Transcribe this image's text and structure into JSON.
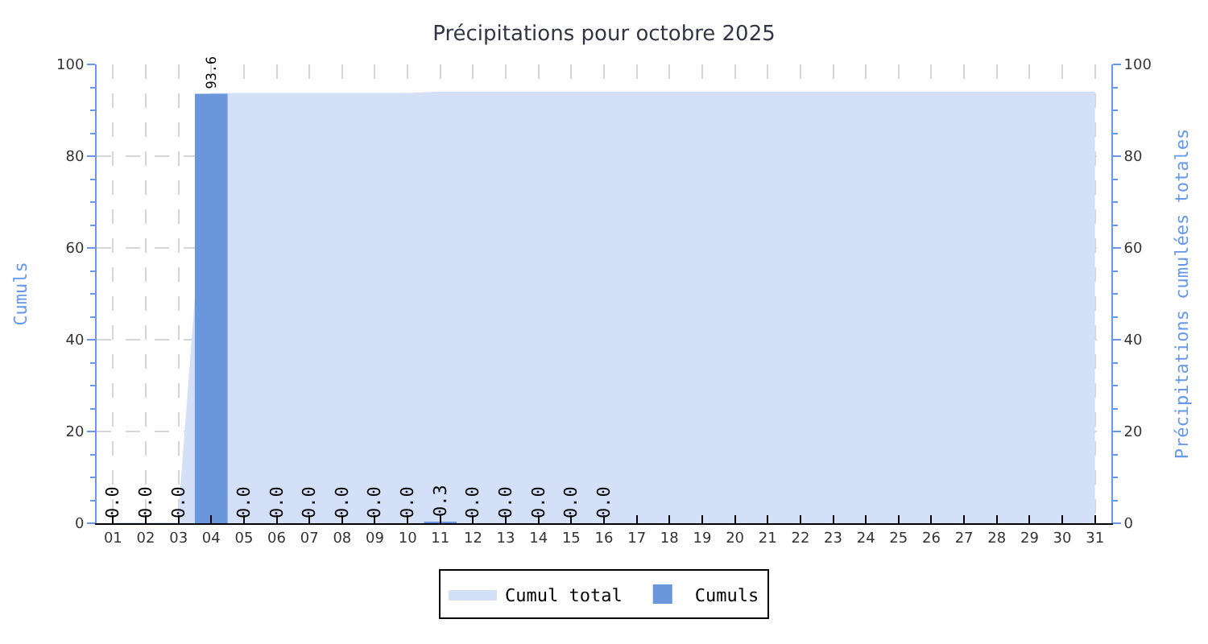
{
  "chart_data": {
    "type": "bar",
    "title": "Précipitations pour octobre 2025",
    "ylabel": "Cumuls",
    "y2label": "Précipitations cumulées totales",
    "categories": [
      "01",
      "02",
      "03",
      "04",
      "05",
      "06",
      "07",
      "08",
      "09",
      "10",
      "11",
      "12",
      "13",
      "14",
      "15",
      "16",
      "17",
      "18",
      "19",
      "20",
      "21",
      "22",
      "23",
      "24",
      "25",
      "26",
      "27",
      "28",
      "29",
      "30",
      "31"
    ],
    "series": [
      {
        "name": "Cumul total",
        "type": "area",
        "axis": "y2",
        "color": "#d3e0f8",
        "values": [
          0,
          0,
          0,
          93.6,
          93.6,
          93.6,
          93.6,
          93.6,
          93.6,
          93.6,
          93.9,
          93.9,
          93.9,
          93.9,
          93.9,
          93.9,
          93.9,
          93.9,
          93.9,
          93.9,
          93.9,
          93.9,
          93.9,
          93.9,
          93.9,
          93.9,
          93.9,
          93.9,
          93.9,
          93.9,
          93.9
        ]
      },
      {
        "name": "Cumuls",
        "color": "#6a96dc",
        "values": [
          0.0,
          0.0,
          0.0,
          93.6,
          0.0,
          0.0,
          0.0,
          0.0,
          0.0,
          0.0,
          0.3,
          0.0,
          0.0,
          0.0,
          0.0,
          0.0,
          null,
          null,
          null,
          null,
          null,
          null,
          null,
          null,
          null,
          null,
          null,
          null,
          null,
          null,
          null
        ],
        "value_labels": [
          "0.0",
          "0.0",
          "0.0",
          "93.6",
          "0.0",
          "0.0",
          "0.0",
          "0.0",
          "0.0",
          "0.0",
          "0.3",
          "0.0",
          "0.0",
          "0.0",
          "0.0",
          "0.0",
          null,
          null,
          null,
          null,
          null,
          null,
          null,
          null,
          null,
          null,
          null,
          null,
          null,
          null,
          null
        ]
      }
    ],
    "ylim": [
      0,
      100
    ],
    "yticks": [
      0,
      20,
      40,
      60,
      80,
      100
    ],
    "y2lim": [
      0,
      100
    ],
    "y2ticks": [
      0,
      20,
      40,
      60,
      80,
      100
    ],
    "grid": true,
    "legend": "bottom"
  }
}
